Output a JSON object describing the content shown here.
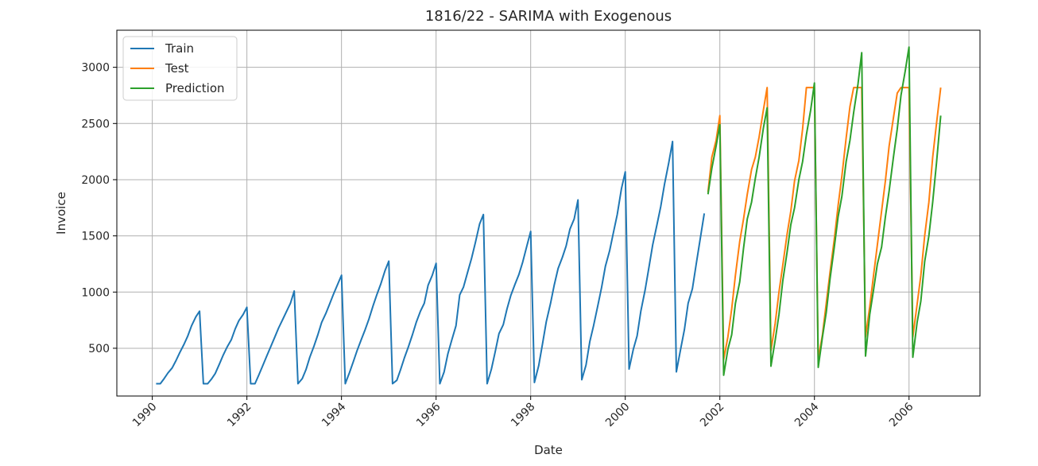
{
  "chart_data": {
    "type": "line",
    "title": "1816/22 - SARIMA with Exogenous",
    "xlabel": "Date",
    "ylabel": "Invoice",
    "xlim": [
      1989.25,
      2007.5
    ],
    "ylim": [
      75,
      3330
    ],
    "x_ticks": [
      1990,
      1992,
      1994,
      1996,
      1998,
      2000,
      2002,
      2004,
      2006
    ],
    "y_ticks": [
      500,
      1000,
      1500,
      2000,
      2500,
      3000
    ],
    "grid": true,
    "legend_position": "top-left",
    "series": [
      {
        "name": "Train",
        "color": "#1f77b4",
        "x": [
          1990.08,
          1990.17,
          1990.25,
          1990.33,
          1990.42,
          1990.5,
          1990.58,
          1990.67,
          1990.75,
          1990.83,
          1990.92,
          1991.0,
          1991.08,
          1991.17,
          1991.25,
          1991.33,
          1991.42,
          1991.5,
          1991.58,
          1991.67,
          1991.75,
          1991.83,
          1991.92,
          1992.0,
          1992.08,
          1992.17,
          1992.25,
          1992.33,
          1992.42,
          1992.5,
          1992.58,
          1992.67,
          1992.75,
          1992.83,
          1992.92,
          1993.0,
          1993.08,
          1993.17,
          1993.25,
          1993.33,
          1993.42,
          1993.5,
          1993.58,
          1993.67,
          1993.75,
          1993.83,
          1993.92,
          1994.0,
          1994.08,
          1994.17,
          1994.25,
          1994.33,
          1994.42,
          1994.5,
          1994.58,
          1994.67,
          1994.75,
          1994.83,
          1994.92,
          1995.0,
          1995.08,
          1995.17,
          1995.25,
          1995.33,
          1995.42,
          1995.5,
          1995.58,
          1995.67,
          1995.75,
          1995.83,
          1995.92,
          1996.0,
          1996.08,
          1996.17,
          1996.25,
          1996.33,
          1996.42,
          1996.5,
          1996.58,
          1996.67,
          1996.75,
          1996.83,
          1996.92,
          1997.0,
          1997.08,
          1997.17,
          1997.25,
          1997.33,
          1997.42,
          1997.5,
          1997.58,
          1997.67,
          1997.75,
          1997.83,
          1997.92,
          1998.0,
          1998.08,
          1998.17,
          1998.25,
          1998.33,
          1998.42,
          1998.5,
          1998.58,
          1998.67,
          1998.75,
          1998.83,
          1998.92,
          1999.0,
          1999.08,
          1999.17,
          1999.25,
          1999.33,
          1999.42,
          1999.5,
          1999.58,
          1999.67,
          1999.75,
          1999.83,
          1999.92,
          2000.0,
          2000.08,
          2000.17,
          2000.25,
          2000.33,
          2000.42,
          2000.5,
          2000.58,
          2000.67,
          2000.75,
          2000.83,
          2000.92,
          2001.0,
          2001.08,
          2001.17,
          2001.25,
          2001.33,
          2001.42,
          2001.5,
          2001.58,
          2001.67
        ],
        "y": [
          185,
          185,
          230,
          280,
          325,
          390,
          460,
          535,
          610,
          700,
          780,
          830,
          185,
          185,
          225,
          275,
          360,
          440,
          510,
          575,
          670,
          745,
          800,
          865,
          185,
          185,
          260,
          340,
          430,
          510,
          590,
          680,
          750,
          820,
          900,
          1010,
          185,
          230,
          310,
          420,
          520,
          620,
          730,
          810,
          895,
          980,
          1070,
          1150,
          185,
          285,
          380,
          480,
          580,
          665,
          760,
          880,
          980,
          1070,
          1190,
          1275,
          185,
          215,
          310,
          415,
          520,
          620,
          730,
          830,
          900,
          1060,
          1150,
          1255,
          185,
          290,
          450,
          570,
          700,
          975,
          1045,
          1180,
          1300,
          1440,
          1605,
          1690,
          185,
          315,
          470,
          630,
          710,
          850,
          970,
          1070,
          1155,
          1265,
          1410,
          1540,
          195,
          345,
          540,
          735,
          900,
          1065,
          1210,
          1310,
          1410,
          1560,
          1650,
          1820,
          220,
          350,
          560,
          700,
          880,
          1040,
          1230,
          1370,
          1530,
          1690,
          1920,
          2070,
          315,
          490,
          610,
          830,
          1020,
          1220,
          1420,
          1600,
          1760,
          1960,
          2150,
          2340,
          290,
          490,
          665,
          900,
          1030,
          1250,
          1460,
          1700
        ]
      },
      {
        "name": "Test",
        "color": "#ff7f0e",
        "x": [
          2001.75,
          2001.83,
          2001.92,
          2002.0,
          2002.08,
          2002.17,
          2002.25,
          2002.33,
          2002.42,
          2002.5,
          2002.58,
          2002.67,
          2002.75,
          2002.83,
          2002.92,
          2003.0,
          2003.08,
          2003.17,
          2003.25,
          2003.33,
          2003.42,
          2003.5,
          2003.58,
          2003.67,
          2003.75,
          2003.83,
          2003.92,
          2004.0,
          2004.08,
          2004.17,
          2004.25,
          2004.33,
          2004.42,
          2004.5,
          2004.58,
          2004.67,
          2004.75,
          2004.83,
          2004.92,
          2005.0,
          2005.08,
          2005.17,
          2005.25,
          2005.33,
          2005.42,
          2005.5,
          2005.58,
          2005.67,
          2005.75,
          2005.83,
          2005.92,
          2006.0,
          2006.08,
          2006.17,
          2006.25,
          2006.33,
          2006.42,
          2006.5,
          2006.58,
          2006.67
        ],
        "y": [
          1890,
          2200,
          2350,
          2570,
          400,
          600,
          850,
          1150,
          1450,
          1650,
          1870,
          2090,
          2200,
          2380,
          2620,
          2820,
          480,
          720,
          1000,
          1240,
          1510,
          1720,
          1990,
          2170,
          2450,
          2820,
          2820,
          2820,
          400,
          620,
          900,
          1180,
          1470,
          1770,
          2030,
          2370,
          2650,
          2820,
          2820,
          2820,
          600,
          870,
          1150,
          1420,
          1720,
          1990,
          2300,
          2550,
          2770,
          2820,
          2820,
          2820,
          600,
          890,
          1150,
          1500,
          1800,
          2200,
          2500,
          2820
        ]
      },
      {
        "name": "Prediction",
        "color": "#2ca02c",
        "x": [
          2001.75,
          2001.83,
          2001.92,
          2002.0,
          2002.08,
          2002.17,
          2002.25,
          2002.33,
          2002.42,
          2002.5,
          2002.58,
          2002.67,
          2002.75,
          2002.83,
          2002.92,
          2003.0,
          2003.08,
          2003.17,
          2003.25,
          2003.33,
          2003.42,
          2003.5,
          2003.58,
          2003.67,
          2003.75,
          2003.83,
          2003.92,
          2004.0,
          2004.08,
          2004.17,
          2004.25,
          2004.33,
          2004.42,
          2004.5,
          2004.58,
          2004.67,
          2004.75,
          2004.83,
          2004.92,
          2005.0,
          2005.08,
          2005.17,
          2005.25,
          2005.33,
          2005.42,
          2005.5,
          2005.58,
          2005.67,
          2005.75,
          2005.83,
          2005.92,
          2006.0,
          2006.08,
          2006.17,
          2006.25,
          2006.33,
          2006.42,
          2006.5,
          2006.58,
          2006.67
        ],
        "y": [
          1870,
          2100,
          2300,
          2490,
          260,
          490,
          620,
          900,
          1090,
          1390,
          1650,
          1800,
          2010,
          2200,
          2460,
          2640,
          340,
          570,
          800,
          1100,
          1350,
          1600,
          1750,
          2000,
          2160,
          2400,
          2620,
          2860,
          330,
          600,
          820,
          1120,
          1400,
          1670,
          1850,
          2160,
          2350,
          2600,
          2850,
          3130,
          430,
          800,
          1020,
          1250,
          1400,
          1670,
          1900,
          2200,
          2450,
          2750,
          2970,
          3180,
          420,
          730,
          920,
          1270,
          1500,
          1800,
          2150,
          2570
        ]
      }
    ]
  }
}
